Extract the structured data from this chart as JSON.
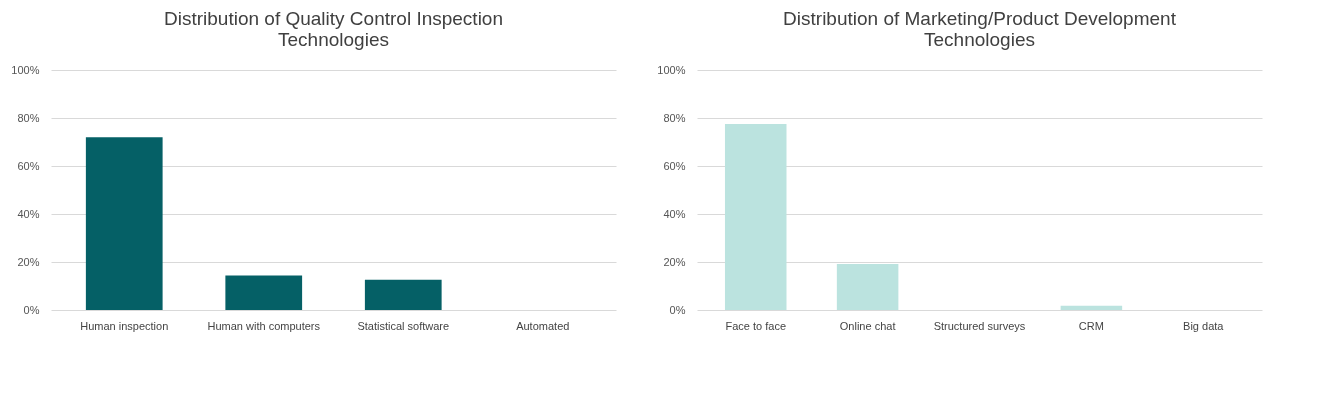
{
  "chart_data": [
    {
      "type": "bar",
      "title": "Distribution of Quality Control Inspection Technologies",
      "categories": [
        "Human inspection",
        "Human with computers",
        "Statistical software",
        "Automated"
      ],
      "values": [
        72,
        14.4,
        12.6,
        0
      ],
      "color": "#056066",
      "ylim": [
        0,
        100
      ],
      "yticks": [
        {
          "value": 0,
          "label": "0%"
        },
        {
          "value": 20,
          "label": "20%"
        },
        {
          "value": 40,
          "label": "40%"
        },
        {
          "value": 60,
          "label": "60%"
        },
        {
          "value": 80,
          "label": "80%"
        },
        {
          "value": 100,
          "label": "100%"
        }
      ],
      "grid": "y"
    },
    {
      "type": "bar",
      "title": "Distribution of Marketing/Product Development Technologies",
      "categories": [
        "Face to face",
        "Online chat",
        "Structured surveys",
        "CRM",
        "Big data"
      ],
      "values": [
        77.5,
        19.2,
        0,
        1.8,
        0
      ],
      "color": "#bbe3df",
      "ylim": [
        0,
        100
      ],
      "yticks": [
        {
          "value": 0,
          "label": "0%"
        },
        {
          "value": 20,
          "label": "20%"
        },
        {
          "value": 40,
          "label": "40%"
        },
        {
          "value": 60,
          "label": "60%"
        },
        {
          "value": 80,
          "label": "80%"
        },
        {
          "value": 100,
          "label": "100%"
        }
      ],
      "grid": "y"
    }
  ]
}
